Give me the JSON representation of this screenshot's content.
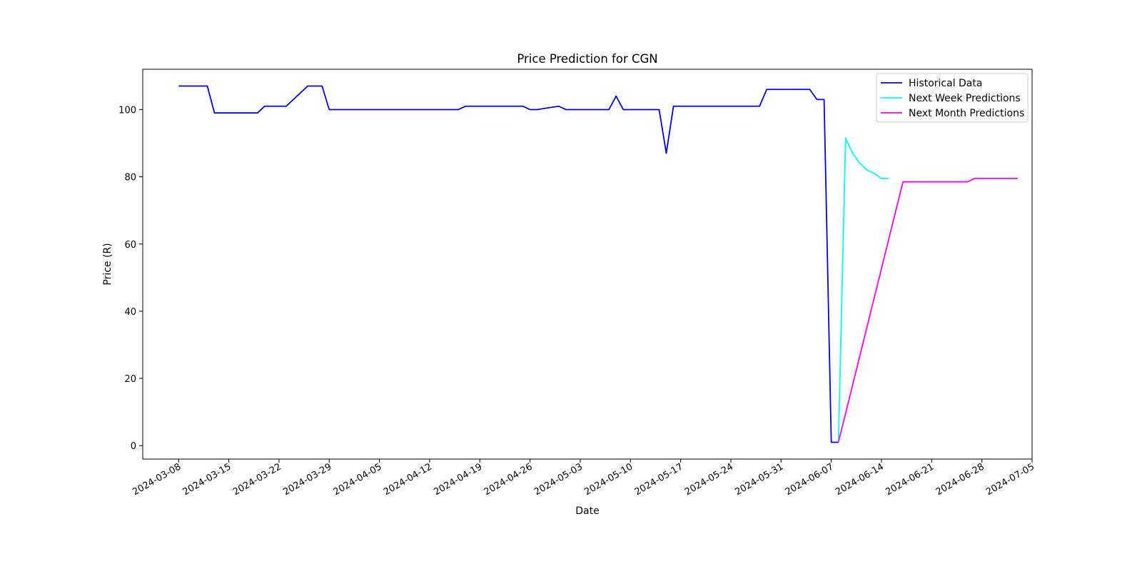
{
  "chart_data": {
    "type": "line",
    "title": "Price Prediction for CGN",
    "xlabel": "Date",
    "ylabel": "Price (R)",
    "x_axis": "date",
    "xlim": [
      "2024-03-03",
      "2024-07-05"
    ],
    "ylim": [
      -4,
      112
    ],
    "x_ticks": [
      "2024-03-08",
      "2024-03-15",
      "2024-03-22",
      "2024-03-29",
      "2024-04-05",
      "2024-04-12",
      "2024-04-19",
      "2024-04-26",
      "2024-05-03",
      "2024-05-10",
      "2024-05-17",
      "2024-05-24",
      "2024-05-31",
      "2024-06-07",
      "2024-06-14",
      "2024-06-21",
      "2024-06-28",
      "2024-07-05"
    ],
    "y_ticks": [
      0,
      20,
      40,
      60,
      80,
      100
    ],
    "grid": false,
    "legend": {
      "position": "top-right"
    },
    "series": [
      {
        "name": "Historical Data",
        "color": "#0000ff",
        "points": [
          [
            "2024-03-08",
            107
          ],
          [
            "2024-03-12",
            107
          ],
          [
            "2024-03-13",
            99
          ],
          [
            "2024-03-19",
            99
          ],
          [
            "2024-03-20",
            101
          ],
          [
            "2024-03-23",
            101
          ],
          [
            "2024-03-26",
            107
          ],
          [
            "2024-03-28",
            107
          ],
          [
            "2024-03-29",
            100
          ],
          [
            "2024-04-16",
            100
          ],
          [
            "2024-04-17",
            101
          ],
          [
            "2024-04-25",
            101
          ],
          [
            "2024-04-26",
            100
          ],
          [
            "2024-04-27",
            100
          ],
          [
            "2024-04-30",
            101
          ],
          [
            "2024-05-01",
            100
          ],
          [
            "2024-05-07",
            100
          ],
          [
            "2024-05-08",
            104
          ],
          [
            "2024-05-09",
            100
          ],
          [
            "2024-05-14",
            100
          ],
          [
            "2024-05-15",
            87
          ],
          [
            "2024-05-16",
            101
          ],
          [
            "2024-05-28",
            101
          ],
          [
            "2024-05-29",
            106
          ],
          [
            "2024-06-04",
            106
          ],
          [
            "2024-06-05",
            103
          ],
          [
            "2024-06-06",
            103
          ],
          [
            "2024-06-07",
            1
          ],
          [
            "2024-06-08",
            1
          ]
        ]
      },
      {
        "name": "Next Week Predictions",
        "color": "#00ffff",
        "points": [
          [
            "2024-06-08",
            1
          ],
          [
            "2024-06-09",
            91.5
          ],
          [
            "2024-06-10",
            87
          ],
          [
            "2024-06-11",
            84
          ],
          [
            "2024-06-12",
            82
          ],
          [
            "2024-06-13",
            81
          ],
          [
            "2024-06-14",
            79.5
          ],
          [
            "2024-06-15",
            79.5
          ]
        ]
      },
      {
        "name": "Next Month Predictions",
        "color": "#ff00ff",
        "points": [
          [
            "2024-06-08",
            1
          ],
          [
            "2024-06-17",
            78.5
          ],
          [
            "2024-06-26",
            78.5
          ],
          [
            "2024-06-27",
            79.5
          ],
          [
            "2024-07-03",
            79.5
          ]
        ]
      }
    ]
  }
}
